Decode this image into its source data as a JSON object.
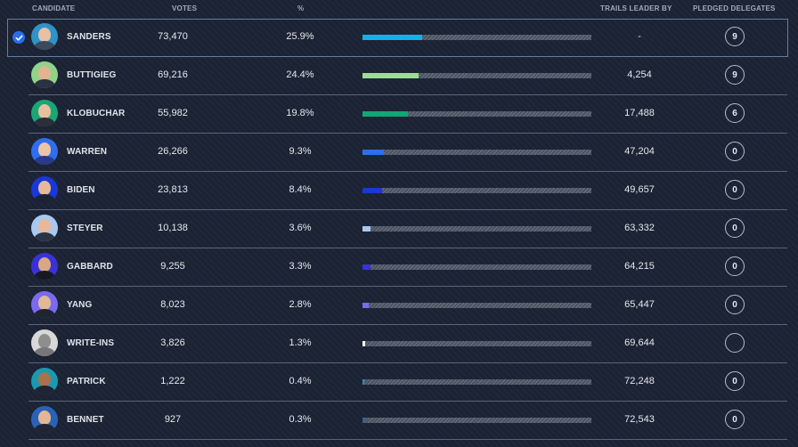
{
  "header": {
    "candidate": "CANDIDATE",
    "votes": "VOTES",
    "pct": "%",
    "trails": "TRAILS LEADER BY",
    "delegates": "PLEDGED DELEGATES"
  },
  "candidates": [
    {
      "name": "SANDERS",
      "votes": "73,470",
      "pct": "25.9%",
      "share": 0.259,
      "trails": "-",
      "delegates": "9",
      "color": "#12b2e8",
      "skin": "#e8c0a6",
      "suit": "#3b4a5c",
      "bg": "#2e93c9",
      "selected": true
    },
    {
      "name": "BUTTIGIEG",
      "votes": "69,216",
      "pct": "24.4%",
      "share": 0.244,
      "trails": "4,254",
      "delegates": "9",
      "color": "#9ddc98",
      "skin": "#e2b48f",
      "suit": "#2b3140",
      "bg": "#8ed48a",
      "selected": false
    },
    {
      "name": "KLOBUCHAR",
      "votes": "55,982",
      "pct": "19.8%",
      "share": 0.198,
      "trails": "17,488",
      "delegates": "6",
      "color": "#0ea875",
      "skin": "#e9bf9e",
      "suit": "#2c2f3a",
      "bg": "#17a876",
      "selected": false
    },
    {
      "name": "WARREN",
      "votes": "26,266",
      "pct": "9.3%",
      "share": 0.093,
      "trails": "47,204",
      "delegates": "0",
      "color": "#2e6ef0",
      "skin": "#ecc4a6",
      "suit": "#2a3a8a",
      "bg": "#2e6ef0",
      "selected": false
    },
    {
      "name": "BIDEN",
      "votes": "23,813",
      "pct": "8.4%",
      "share": 0.084,
      "trails": "49,657",
      "delegates": "0",
      "color": "#1838d8",
      "skin": "#e5b99a",
      "suit": "#1c2232",
      "bg": "#1838d8",
      "selected": false
    },
    {
      "name": "STEYER",
      "votes": "10,138",
      "pct": "3.6%",
      "share": 0.036,
      "trails": "63,332",
      "delegates": "0",
      "color": "#a8c8f0",
      "skin": "#e7b999",
      "suit": "#2b3344",
      "bg": "#a8c8f0",
      "selected": false
    },
    {
      "name": "GABBARD",
      "votes": "9,255",
      "pct": "3.3%",
      "share": 0.033,
      "trails": "64,215",
      "delegates": "0",
      "color": "#3a32d8",
      "skin": "#d9a882",
      "suit": "#181824",
      "bg": "#3a32d8",
      "selected": false
    },
    {
      "name": "YANG",
      "votes": "8,023",
      "pct": "2.8%",
      "share": 0.028,
      "trails": "65,447",
      "delegates": "0",
      "color": "#7a6af0",
      "skin": "#e3b995",
      "suit": "#202330",
      "bg": "#7a6af0",
      "selected": false
    },
    {
      "name": "WRITE-INS",
      "votes": "3,826",
      "pct": "1.3%",
      "share": 0.013,
      "trails": "69,644",
      "delegates": "",
      "color": "#ffffff",
      "skin": "#8e8e8e",
      "suit": "#777777",
      "bg": "#d8d8d8",
      "selected": false
    },
    {
      "name": "PATRICK",
      "votes": "1,222",
      "pct": "0.4%",
      "share": 0.004,
      "trails": "72,248",
      "delegates": "0",
      "color": "#1a9ab0",
      "skin": "#a9714e",
      "suit": "#1e2430",
      "bg": "#1a9ab0",
      "selected": false
    },
    {
      "name": "BENNET",
      "votes": "927",
      "pct": "0.3%",
      "share": 0.003,
      "trails": "72,543",
      "delegates": "0",
      "color": "#2a62b8",
      "skin": "#e3b794",
      "suit": "#1f2532",
      "bg": "#2a62b8",
      "selected": false
    }
  ]
}
